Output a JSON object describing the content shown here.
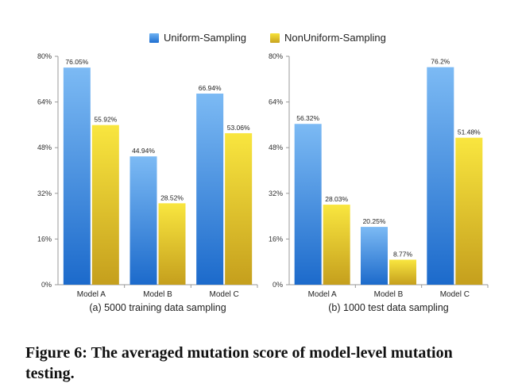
{
  "legend": {
    "series": [
      {
        "name": "Uniform-Sampling",
        "color_top": "#6eb2f2",
        "color_bottom": "#1f6fd0"
      },
      {
        "name": "NonUniform-Sampling",
        "color_top": "#f7e23a",
        "color_bottom": "#c8a41f"
      }
    ]
  },
  "chart_data": [
    {
      "type": "bar",
      "title": "(a) 5000 training data sampling",
      "categories": [
        "Model A",
        "Model B",
        "Model C"
      ],
      "series": [
        {
          "name": "Uniform-Sampling",
          "values": [
            76.05,
            44.94,
            66.94
          ],
          "labels": [
            "76.05%",
            "44.94%",
            "66.94%"
          ]
        },
        {
          "name": "NonUniform-Sampling",
          "values": [
            55.92,
            28.52,
            53.06
          ],
          "labels": [
            "55.92%",
            "28.52%",
            "53.06%"
          ]
        }
      ],
      "ylim": [
        0,
        80
      ],
      "yticks": [
        0,
        16,
        32,
        48,
        64,
        80
      ],
      "ytick_labels": [
        "0%",
        "16%",
        "32%",
        "48%",
        "64%",
        "80%"
      ],
      "grid": false
    },
    {
      "type": "bar",
      "title": "(b) 1000 test data sampling",
      "categories": [
        "Model A",
        "Model B",
        "Model C"
      ],
      "series": [
        {
          "name": "Uniform-Sampling",
          "values": [
            56.32,
            20.25,
            76.2
          ],
          "labels": [
            "56.32%",
            "20.25%",
            "76.2%"
          ]
        },
        {
          "name": "NonUniform-Sampling",
          "values": [
            28.03,
            8.77,
            51.48
          ],
          "labels": [
            "28.03%",
            "8.77%",
            "51.48%"
          ]
        }
      ],
      "ylim": [
        0,
        80
      ],
      "yticks": [
        0,
        16,
        32,
        48,
        64,
        80
      ],
      "ytick_labels": [
        "0%",
        "16%",
        "32%",
        "48%",
        "64%",
        "80%"
      ],
      "grid": false
    }
  ],
  "caption": "Figure 6: The averaged mutation score of model-level mutation testing."
}
